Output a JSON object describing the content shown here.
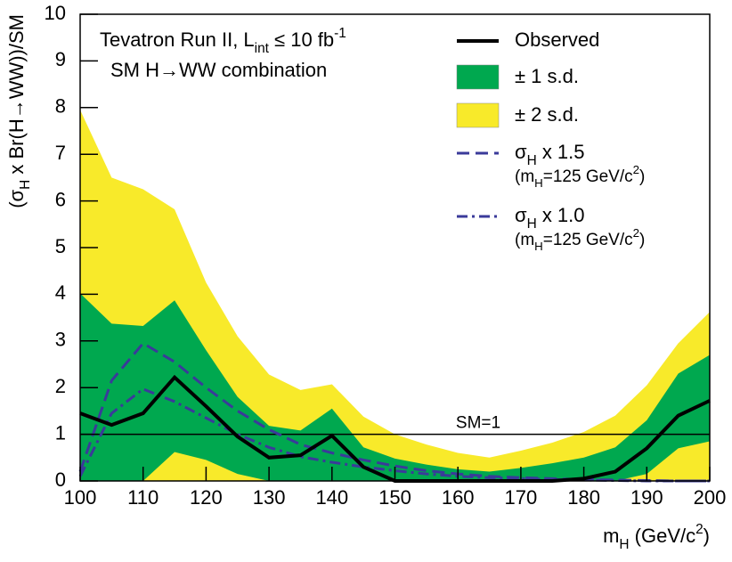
{
  "chart_data": {
    "type": "band-limit",
    "x": [
      100,
      105,
      110,
      115,
      120,
      125,
      130,
      135,
      140,
      145,
      150,
      155,
      160,
      165,
      170,
      175,
      180,
      185,
      190,
      195,
      200
    ],
    "xlim": [
      100,
      200
    ],
    "xticks": [
      100,
      110,
      120,
      130,
      140,
      150,
      160,
      170,
      180,
      190,
      200
    ],
    "ylim": [
      0,
      10
    ],
    "yticks": [
      0,
      1,
      2,
      3,
      4,
      5,
      6,
      7,
      8,
      9,
      10
    ],
    "x_label": [
      {
        "text": "m"
      },
      {
        "text": "H",
        "shift": "sub"
      },
      {
        "text": " (GeV/c"
      },
      {
        "text": "2",
        "shift": "super"
      },
      {
        "text": ")"
      }
    ],
    "y_label": [
      {
        "text": "(σ"
      },
      {
        "text": "H",
        "shift": "sub"
      },
      {
        "text": " x Br(H→WW))/SM"
      }
    ],
    "annotation_lines": [
      [
        {
          "text": "Tevatron Run II, L"
        },
        {
          "text": "int",
          "shift": "sub"
        },
        {
          "text": " ≤ 10 fb"
        },
        {
          "text": "-1",
          "shift": "super"
        }
      ],
      [
        {
          "text": "SM H→WW  combination"
        }
      ]
    ],
    "reference_line": {
      "value": 1,
      "label": "SM=1",
      "color": "#000000"
    },
    "bands": [
      {
        "name": "± 2 s.d.",
        "color": "#f8ea2a",
        "lower": [
          0,
          0,
          0,
          0,
          0,
          0,
          0,
          0,
          0,
          0,
          0,
          0,
          0,
          0,
          0,
          0,
          0,
          0,
          0,
          0,
          0
        ],
        "upper": [
          7.95,
          6.5,
          6.25,
          5.82,
          4.25,
          3.1,
          2.28,
          1.95,
          2.07,
          1.38,
          1.0,
          0.78,
          0.6,
          0.5,
          0.65,
          0.82,
          1.05,
          1.4,
          2.05,
          2.95,
          3.62
        ]
      },
      {
        "name": "± 1 s.d.",
        "color": "#00a84f",
        "lower": [
          0,
          0,
          0,
          0.62,
          0.45,
          0.15,
          0,
          0,
          0,
          0,
          0,
          0,
          0,
          0,
          0,
          0,
          0,
          0,
          0.15,
          0.7,
          0.85
        ],
        "upper": [
          4.02,
          3.37,
          3.32,
          3.87,
          2.8,
          1.8,
          1.18,
          1.08,
          1.55,
          0.72,
          0.48,
          0.35,
          0.25,
          0.2,
          0.28,
          0.38,
          0.5,
          0.72,
          1.3,
          2.3,
          2.7
        ]
      }
    ],
    "series": [
      {
        "name": [
          {
            "text": "Observed"
          }
        ],
        "color": "#000000",
        "style": "solid",
        "width": 4,
        "values": [
          1.45,
          1.2,
          1.45,
          2.22,
          1.6,
          0.95,
          0.5,
          0.55,
          0.97,
          0.3,
          0,
          0,
          0,
          0,
          0,
          0,
          0.05,
          0.2,
          0.7,
          1.4,
          1.72
        ]
      },
      {
        "name": [
          {
            "text": "σ"
          },
          {
            "text": "H",
            "shift": "sub"
          },
          {
            "text": " x 1.5"
          }
        ],
        "note": [
          {
            "text": "(m"
          },
          {
            "text": "H",
            "shift": "sub"
          },
          {
            "text": "=125 GeV/c"
          },
          {
            "text": "2",
            "shift": "super"
          },
          {
            "text": ")"
          }
        ],
        "color": "#3a3a9a",
        "style": "dashed",
        "width": 3,
        "values": [
          0.2,
          2.15,
          2.95,
          2.55,
          2.0,
          1.5,
          1.1,
          0.78,
          0.6,
          0.45,
          0.32,
          0.22,
          0.15,
          0.1,
          0.07,
          0.05,
          0.03,
          0.02,
          0.01,
          0,
          0
        ]
      },
      {
        "name": [
          {
            "text": "σ"
          },
          {
            "text": "H",
            "shift": "sub"
          },
          {
            "text": " x 1.0"
          }
        ],
        "note": [
          {
            "text": "(m"
          },
          {
            "text": "H",
            "shift": "sub"
          },
          {
            "text": "=125 GeV/c"
          },
          {
            "text": "2",
            "shift": "super"
          },
          {
            "text": ")"
          }
        ],
        "color": "#3a3a9a",
        "style": "dashdot",
        "width": 3,
        "values": [
          0.1,
          1.45,
          1.97,
          1.7,
          1.35,
          1.0,
          0.72,
          0.52,
          0.4,
          0.3,
          0.22,
          0.15,
          0.1,
          0.07,
          0.05,
          0.03,
          0.02,
          0.01,
          0,
          0,
          0
        ]
      }
    ]
  }
}
